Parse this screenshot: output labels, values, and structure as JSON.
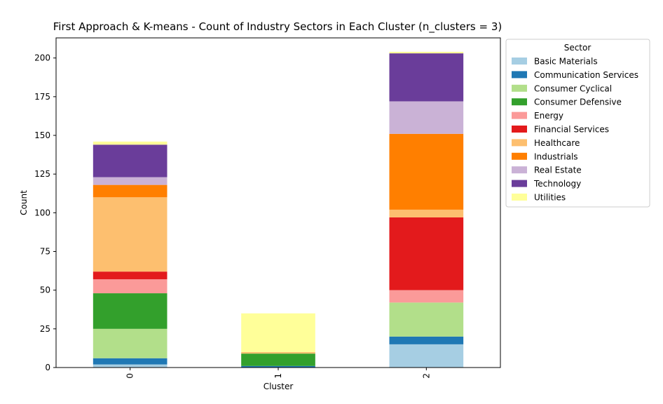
{
  "chart_data": {
    "type": "bar",
    "stacked": true,
    "title": "First Approach & K-means - Count of Industry Sectors in Each Cluster (n_clusters = 3)",
    "xlabel": "Cluster",
    "ylabel": "Count",
    "categories": [
      "0",
      "1",
      "2"
    ],
    "ylim": [
      0,
      213
    ],
    "yticks": [
      0,
      25,
      50,
      75,
      100,
      125,
      150,
      175,
      200
    ],
    "grid": false,
    "legend": {
      "title": "Sector",
      "placement": "outside-right"
    },
    "series": [
      {
        "name": "Basic Materials",
        "color": "#a6cee3",
        "values": [
          2,
          0,
          15
        ]
      },
      {
        "name": "Communication Services",
        "color": "#1f78b4",
        "values": [
          4,
          1,
          5
        ]
      },
      {
        "name": "Consumer Cyclical",
        "color": "#b2df8a",
        "values": [
          19,
          0,
          22
        ]
      },
      {
        "name": "Consumer Defensive",
        "color": "#33a02c",
        "values": [
          23,
          8,
          0
        ]
      },
      {
        "name": "Energy",
        "color": "#fb9a99",
        "values": [
          9,
          0,
          8
        ]
      },
      {
        "name": "Financial Services",
        "color": "#e31a1c",
        "values": [
          5,
          0,
          47
        ]
      },
      {
        "name": "Healthcare",
        "color": "#fdbf6f",
        "values": [
          48,
          1,
          5
        ]
      },
      {
        "name": "Industrials",
        "color": "#ff7f00",
        "values": [
          8,
          0,
          49
        ]
      },
      {
        "name": "Real Estate",
        "color": "#cab2d6",
        "values": [
          5,
          0,
          21
        ]
      },
      {
        "name": "Technology",
        "color": "#6a3d9a",
        "values": [
          21,
          0,
          31
        ]
      },
      {
        "name": "Utilities",
        "color": "#ffff99",
        "values": [
          2,
          25,
          1
        ]
      }
    ]
  }
}
